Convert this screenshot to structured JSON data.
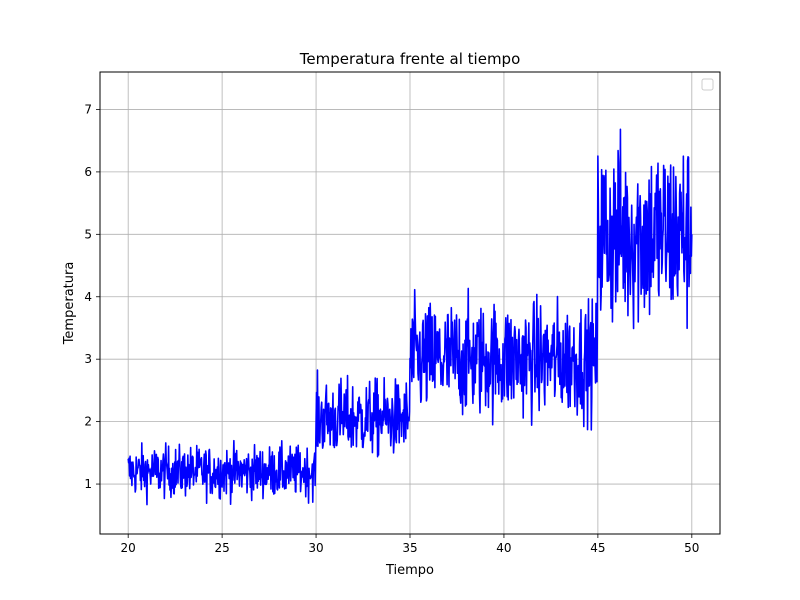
{
  "chart_data": {
    "type": "line",
    "title": "Temperatura frente al tiempo",
    "xlabel": "Tiempo",
    "ylabel": "Temperatura",
    "xlim": [
      18.5,
      51.5
    ],
    "ylim": [
      0.2,
      7.6
    ],
    "xticks": [
      20,
      25,
      30,
      35,
      40,
      45,
      50
    ],
    "yticks": [
      1,
      2,
      3,
      4,
      5,
      6,
      7
    ],
    "grid": true,
    "legend": "top-right",
    "line_color": "#0000ff",
    "segments": [
      {
        "x_start": 20,
        "x_end": 30,
        "mean": 1.2,
        "noise": 0.2,
        "min": 0.55,
        "max": 1.8
      },
      {
        "x_start": 30,
        "x_end": 35,
        "mean": 2.05,
        "noise": 0.3,
        "min": 1.1,
        "max": 3.0
      },
      {
        "x_start": 35,
        "x_end": 45,
        "mean": 3.0,
        "noise": 0.45,
        "min": 1.25,
        "max": 4.45
      },
      {
        "x_start": 45,
        "x_end": 50,
        "mean": 5.0,
        "noise": 0.75,
        "min": 2.6,
        "max": 7.3
      }
    ]
  }
}
